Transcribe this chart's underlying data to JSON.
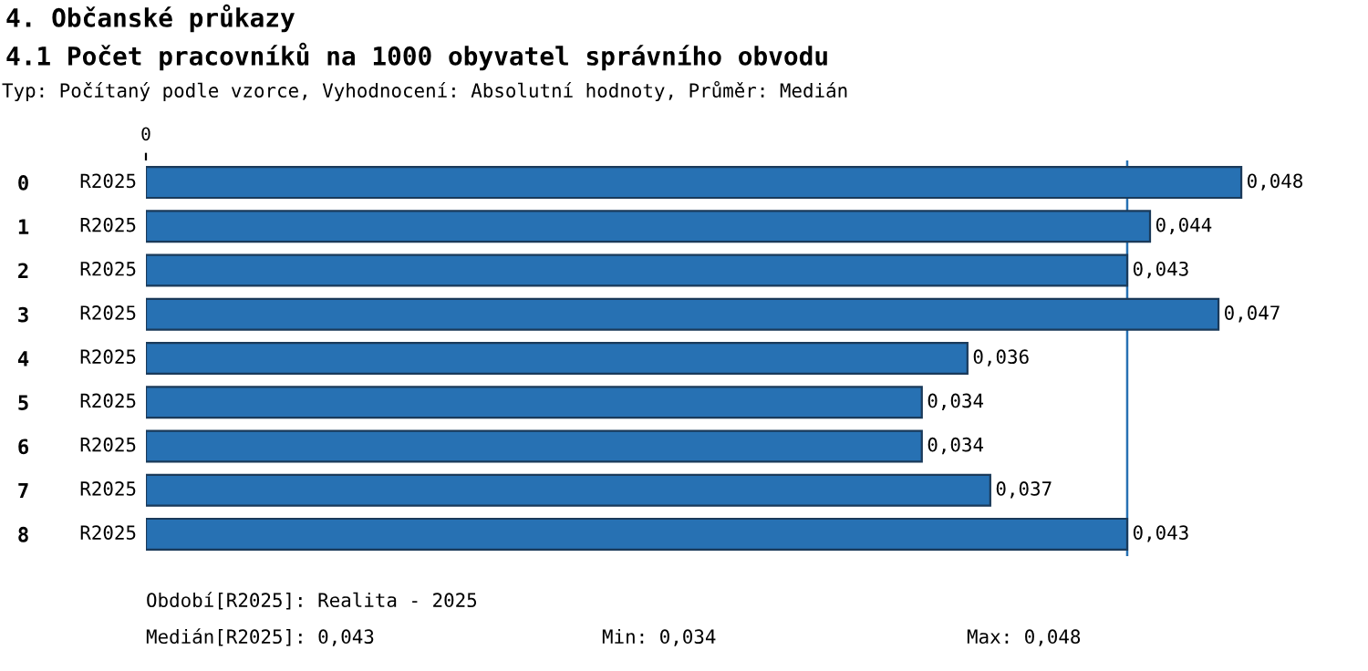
{
  "chart_data": {
    "type": "bar",
    "orientation": "horizontal",
    "title": "4. Občanské průkazy",
    "subtitle": "4.1 Počet pracovníků na 1000 obyvatel správního obvodu",
    "categories": [
      "0",
      "1",
      "2",
      "3",
      "4",
      "5",
      "6",
      "7",
      "8"
    ],
    "series": [
      {
        "name": "R2025",
        "color": "#2771b3",
        "values": [
          0.048,
          0.044,
          0.043,
          0.047,
          0.036,
          0.034,
          0.034,
          0.037,
          0.043
        ],
        "value_labels": [
          "0,048",
          "0,044",
          "0,043",
          "0,047",
          "0,036",
          "0,034",
          "0,034",
          "0,037",
          "0,043"
        ]
      }
    ],
    "ref_lines": [
      {
        "axis": "x",
        "value": 0.043,
        "color": "#2771b3"
      }
    ],
    "grid": false,
    "legend": false,
    "annotations": [
      "0",
      "Typ: Počítaný podle vzorce, Vyhodnocení: Absolutní hodnoty, Průměr: Medián",
      "Období[R2025]: Realita - 2025",
      "Medián[R2025]: 0,043",
      "Min: 0,034",
      "Max: 0,048"
    ]
  }
}
